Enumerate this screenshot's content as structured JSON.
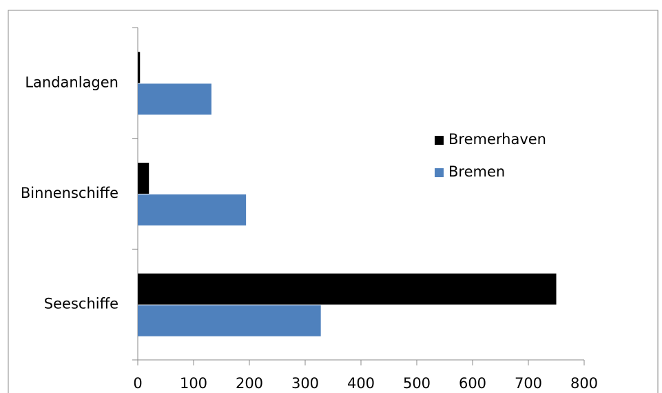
{
  "chart_data": {
    "type": "bar",
    "orientation": "horizontal",
    "categories": [
      "Landanlagen",
      "Binnenschiffe",
      "Seeschiffe"
    ],
    "series": [
      {
        "name": "Bremerhaven",
        "color": "#000000",
        "values": [
          4,
          20,
          750
        ]
      },
      {
        "name": "Bremen",
        "color": "#4f81bd",
        "values": [
          132,
          194,
          328
        ]
      }
    ],
    "xlim": [
      0,
      800
    ],
    "xticks": [
      0,
      100,
      200,
      300,
      400,
      500,
      600,
      700,
      800
    ],
    "legend": "right"
  }
}
